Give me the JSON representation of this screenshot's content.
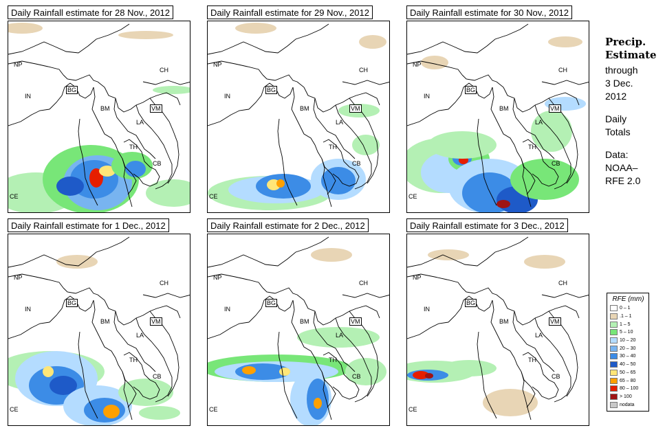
{
  "panels": [
    {
      "title": "Daily Rainfall estimate for  28 Nov., 2012"
    },
    {
      "title": "Daily Rainfall estimate for  29 Nov., 2012"
    },
    {
      "title": "Daily Rainfall estimate for  30 Nov., 2012"
    },
    {
      "title": "Daily Rainfall estimate for  1 Dec., 2012"
    },
    {
      "title": "Daily Rainfall estimate for  2 Dec., 2012"
    },
    {
      "title": "Daily Rainfall estimate for  3 Dec., 2012"
    }
  ],
  "country_labels": {
    "np": "NP",
    "ch": "CH",
    "in": "IN",
    "bg": "BG",
    "bm": "BM",
    "vm": "VM",
    "la": "LA",
    "th": "TH",
    "cb": "CB",
    "ce": "CE"
  },
  "side": {
    "title1": "Precip.",
    "title2": "Estimate",
    "through": "through",
    "date1": "3 Dec.",
    "date2": "2012",
    "daily": "Daily",
    "totals": "Totals",
    "data1": "Data:",
    "data2": "NOAA–",
    "data3": "RFE 2.0"
  },
  "legend": {
    "title": "RFE (mm)",
    "items": [
      {
        "label": "0 – 1",
        "color": "#ffffff"
      },
      {
        "label": ".1 – 1",
        "color": "#e8d5b5"
      },
      {
        "label": "1 – 5",
        "color": "#b4f0b4"
      },
      {
        "label": "5 – 10",
        "color": "#78e678"
      },
      {
        "label": "10 – 20",
        "color": "#b4dcff"
      },
      {
        "label": "20 – 30",
        "color": "#78b4f0"
      },
      {
        "label": "30 – 40",
        "color": "#3c8ce6"
      },
      {
        "label": "40 – 50",
        "color": "#1e5ac8"
      },
      {
        "label": "50 – 65",
        "color": "#ffe678"
      },
      {
        "label": "65 – 80",
        "color": "#ffa000"
      },
      {
        "label": "80 – 100",
        "color": "#e61e00"
      },
      {
        "label": "> 100",
        "color": "#a01414"
      },
      {
        "label": "nodata",
        "color": "#c8c8c8"
      }
    ]
  }
}
